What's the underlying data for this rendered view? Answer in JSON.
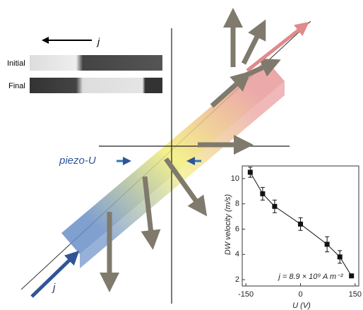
{
  "labels": {
    "current_top": "j",
    "initial": "Initial",
    "final": "Final",
    "piezo": "piezo-U",
    "current_bottom": "j"
  },
  "chart_data": {
    "type": "line",
    "x_label": "U (V)",
    "y_label": "DW velocity (m/s)",
    "annotation": "j = 8.9 × 10⁹ A m⁻²",
    "x": [
      -138,
      -104,
      -71,
      0,
      73,
      108,
      140
    ],
    "values": [
      10.5,
      8.8,
      7.8,
      6.4,
      4.8,
      3.8,
      2.3
    ],
    "errors": [
      0.4,
      0.5,
      0.5,
      0.5,
      0.6,
      0.5,
      null
    ],
    "color": "#111111",
    "xlim": [
      -160,
      160
    ],
    "xticks": [
      -150,
      0,
      150
    ],
    "ylim": [
      1.5,
      11
    ],
    "yticks": [
      2,
      4,
      6,
      8,
      10
    ]
  }
}
